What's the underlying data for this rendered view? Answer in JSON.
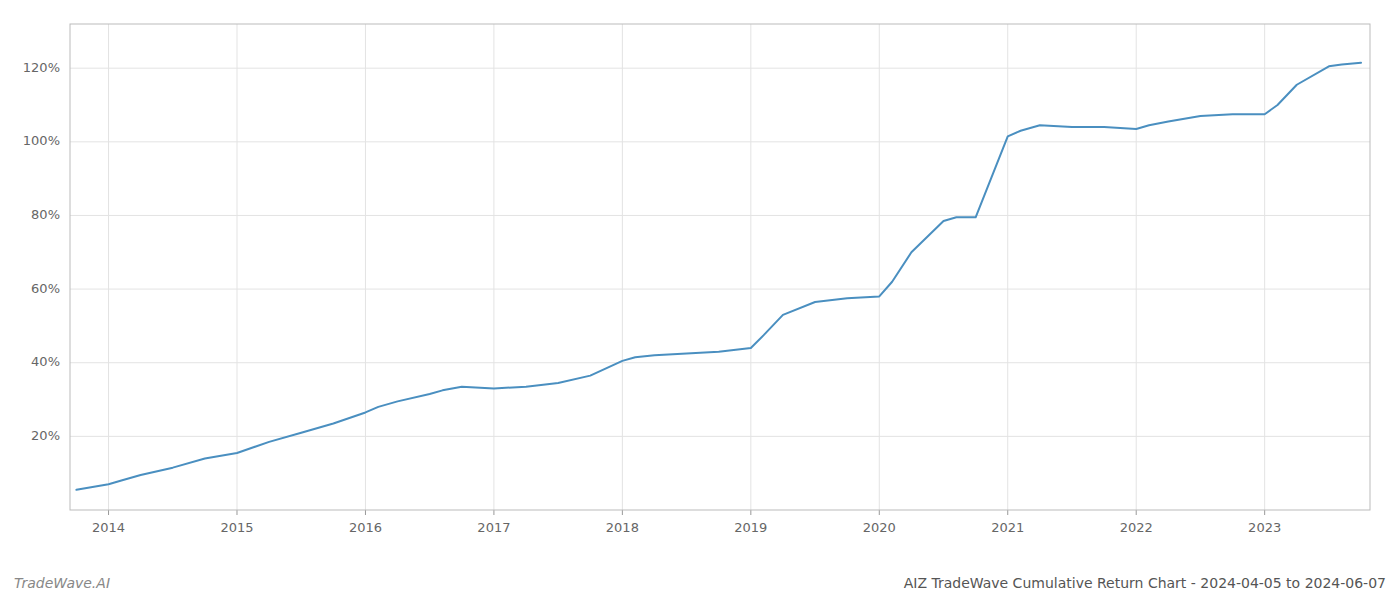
{
  "chart_data": {
    "type": "line",
    "title": "AIZ TradeWave Cumulative Return Chart - 2024-04-05 to 2024-06-07",
    "annotations": [
      "TradeWave.AI"
    ],
    "color": "#4a8fc0",
    "x": [
      2013.75,
      2014.0,
      2014.1,
      2014.25,
      2014.5,
      2014.75,
      2015.0,
      2015.25,
      2015.5,
      2015.75,
      2016.0,
      2016.1,
      2016.25,
      2016.5,
      2016.6,
      2016.75,
      2017.0,
      2017.25,
      2017.5,
      2017.75,
      2018.0,
      2018.1,
      2018.25,
      2018.5,
      2018.75,
      2019.0,
      2019.1,
      2019.25,
      2019.5,
      2019.75,
      2020.0,
      2020.1,
      2020.25,
      2020.5,
      2020.6,
      2020.75,
      2021.0,
      2021.1,
      2021.25,
      2021.5,
      2021.75,
      2022.0,
      2022.1,
      2022.25,
      2022.5,
      2022.75,
      2023.0,
      2023.1,
      2023.25,
      2023.5,
      2023.6,
      2023.75
    ],
    "values": [
      5.5,
      7.0,
      8.0,
      9.5,
      11.5,
      14.0,
      15.5,
      18.5,
      21.0,
      23.5,
      26.5,
      28.0,
      29.5,
      31.5,
      32.5,
      33.5,
      33.0,
      33.5,
      34.5,
      36.5,
      40.5,
      41.5,
      42.0,
      42.5,
      43.0,
      44.0,
      47.5,
      53.0,
      56.5,
      57.5,
      58.0,
      62.0,
      70.0,
      78.5,
      79.5,
      79.5,
      101.5,
      103.0,
      104.5,
      104.0,
      104.0,
      103.5,
      104.5,
      105.5,
      107.0,
      107.5,
      107.5,
      110.0,
      115.5,
      120.5,
      121.0,
      121.5
    ],
    "xlim": [
      2013.7,
      2023.82
    ],
    "ylim": [
      0,
      132
    ],
    "xticks": [
      2014,
      2015,
      2016,
      2017,
      2018,
      2019,
      2020,
      2021,
      2022,
      2023
    ],
    "yticks": [
      {
        "value": 20,
        "label": "20%"
      },
      {
        "value": 40,
        "label": "40%"
      },
      {
        "value": 60,
        "label": "60%"
      },
      {
        "value": 80,
        "label": "80%"
      },
      {
        "value": 100,
        "label": "100%"
      },
      {
        "value": 120,
        "label": "120%"
      }
    ],
    "grid": true
  }
}
